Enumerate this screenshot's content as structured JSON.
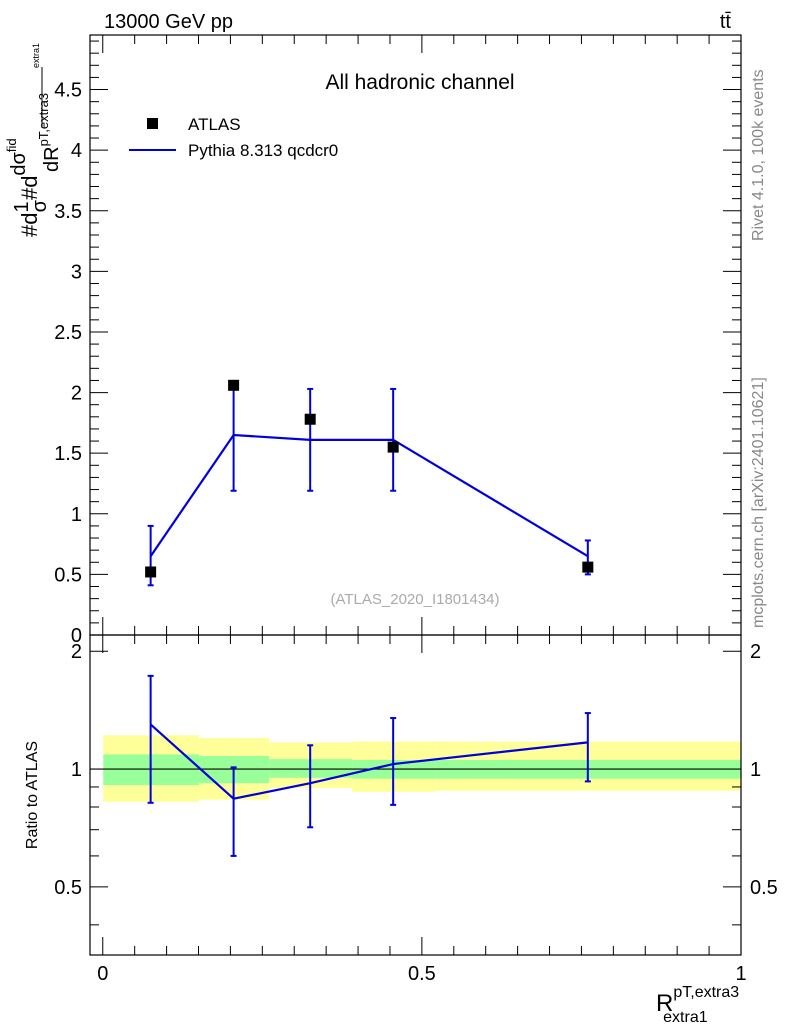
{
  "header": {
    "energy_label": "13000 GeV pp",
    "process_label": "tt̄"
  },
  "side_labels": {
    "rivet": "Rivet 4.1.0,  100k events",
    "site": "mcplots.cern.ch [arXiv:2401.10621]"
  },
  "chart_data": {
    "type": "line",
    "title": "All hadronic channel",
    "analysis_label": "(ATLAS_2020_I1801434)",
    "xlabel": {
      "base": "R",
      "sup": "pT,extra3",
      "sub": "extra1"
    },
    "ylabel": {
      "prefix": "#d",
      "frac1": "1",
      "frac1_den": "σ",
      "mid": "#d",
      "frac2_num": "dσ",
      "frac2_num_sup": "fid",
      "frac2_den": "dR",
      "frac2_den_sup": "pT,extra3",
      "frac2_den_sub": "extra1"
    },
    "xlim": [
      -0.02,
      1.0
    ],
    "x_ticks": [
      "0",
      "0.5",
      "1"
    ],
    "main": {
      "ylim": [
        0,
        4.95
      ],
      "y_ticks": [
        "0",
        "0.5",
        "1",
        "1.5",
        "2",
        "2.5",
        "3",
        "3.5",
        "4",
        "4.5"
      ],
      "legend": [
        {
          "label": "ATLAS",
          "marker": "square",
          "color": "#000000"
        },
        {
          "label": "Pythia 8.313 qcdcr0",
          "marker": "line",
          "color": "#0000dd"
        }
      ],
      "bins": [
        {
          "lo": 0.0,
          "hi": 0.15
        },
        {
          "lo": 0.15,
          "hi": 0.26
        },
        {
          "lo": 0.26,
          "hi": 0.39
        },
        {
          "lo": 0.39,
          "hi": 0.52
        },
        {
          "lo": 0.52,
          "hi": 1.0
        }
      ],
      "data": {
        "name": "ATLAS",
        "x": [
          0.075,
          0.205,
          0.325,
          0.455,
          0.76
        ],
        "y": [
          0.52,
          2.06,
          1.78,
          1.55,
          0.56
        ]
      },
      "mc": {
        "name": "Pythia 8.313 qcdcr0",
        "x": [
          0.075,
          0.205,
          0.325,
          0.455,
          0.76
        ],
        "y": [
          0.65,
          1.65,
          1.61,
          1.61,
          0.65
        ],
        "err_lo": [
          0.41,
          1.19,
          1.19,
          1.19,
          0.5
        ],
        "err_hi": [
          0.9,
          2.07,
          2.03,
          2.03,
          0.78
        ]
      }
    },
    "ratio": {
      "ylabel": "Ratio to ATLAS",
      "ylim": [
        0.335,
        2.2
      ],
      "y_ticks": [
        "0.5",
        "1",
        "2"
      ],
      "reference": 1,
      "band_inner": [
        {
          "lo": 0.0,
          "hi": 0.15,
          "y_lo": 0.91,
          "y_hi": 1.09
        },
        {
          "lo": 0.15,
          "hi": 0.26,
          "y_lo": 0.92,
          "y_hi": 1.08
        },
        {
          "lo": 0.26,
          "hi": 0.39,
          "y_lo": 0.95,
          "y_hi": 1.06
        },
        {
          "lo": 0.39,
          "hi": 0.52,
          "y_lo": 0.945,
          "y_hi": 1.055
        },
        {
          "lo": 0.52,
          "hi": 1.0,
          "y_lo": 0.945,
          "y_hi": 1.055
        }
      ],
      "band_outer": [
        {
          "lo": 0.0,
          "hi": 0.15,
          "y_lo": 0.825,
          "y_hi": 1.22
        },
        {
          "lo": 0.15,
          "hi": 0.26,
          "y_lo": 0.835,
          "y_hi": 1.2
        },
        {
          "lo": 0.26,
          "hi": 0.39,
          "y_lo": 0.895,
          "y_hi": 1.17
        },
        {
          "lo": 0.39,
          "hi": 0.52,
          "y_lo": 0.875,
          "y_hi": 1.175
        },
        {
          "lo": 0.52,
          "hi": 1.0,
          "y_lo": 0.88,
          "y_hi": 1.175
        }
      ],
      "mc": {
        "x": [
          0.075,
          0.205,
          0.325,
          0.455,
          0.76
        ],
        "y": [
          1.3,
          0.84,
          0.92,
          1.03,
          1.17
        ],
        "err_lo": [
          0.82,
          0.6,
          0.71,
          0.81,
          0.93
        ],
        "err_hi": [
          1.73,
          1.01,
          1.15,
          1.35,
          1.39
        ]
      }
    }
  }
}
